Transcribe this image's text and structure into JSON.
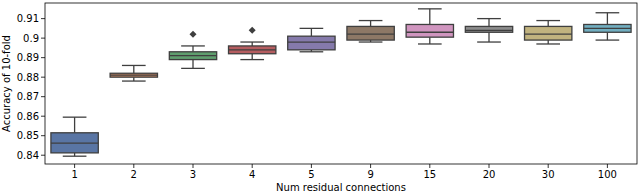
{
  "chart_data": {
    "type": "box",
    "x_label": "Num residual connections",
    "y_label": "Accuracy of 10-fold",
    "categories": [
      "1",
      "2",
      "3",
      "4",
      "5",
      "9",
      "15",
      "20",
      "30",
      "100"
    ],
    "min": [
      0.8395,
      0.878,
      0.8845,
      0.889,
      0.893,
      0.898,
      0.897,
      0.898,
      0.897,
      0.899
    ],
    "q1": [
      0.8412,
      0.88,
      0.889,
      0.892,
      0.894,
      0.899,
      0.9005,
      0.903,
      0.899,
      0.903
    ],
    "median": [
      0.8462,
      0.881,
      0.891,
      0.894,
      0.898,
      0.902,
      0.903,
      0.904,
      0.902,
      0.905
    ],
    "q3": [
      0.8515,
      0.882,
      0.893,
      0.896,
      0.901,
      0.906,
      0.907,
      0.906,
      0.906,
      0.907
    ],
    "max": [
      0.8595,
      0.886,
      0.896,
      0.898,
      0.905,
      0.909,
      0.915,
      0.91,
      0.909,
      0.913
    ],
    "outliers": [
      [],
      [],
      [
        0.902
      ],
      [
        0.904
      ],
      [],
      [],
      [],
      [],
      [],
      []
    ],
    "colors": [
      "#5975a4",
      "#cc8963",
      "#5f9e6e",
      "#b55d60",
      "#857aab",
      "#8d7866",
      "#d095bf",
      "#8c8c8c",
      "#c1b37f",
      "#71aec0"
    ],
    "ylim": [
      0.8355,
      0.918
    ],
    "yticks": [
      0.84,
      0.85,
      0.86,
      0.87,
      0.88,
      0.89,
      0.9,
      0.91
    ]
  }
}
